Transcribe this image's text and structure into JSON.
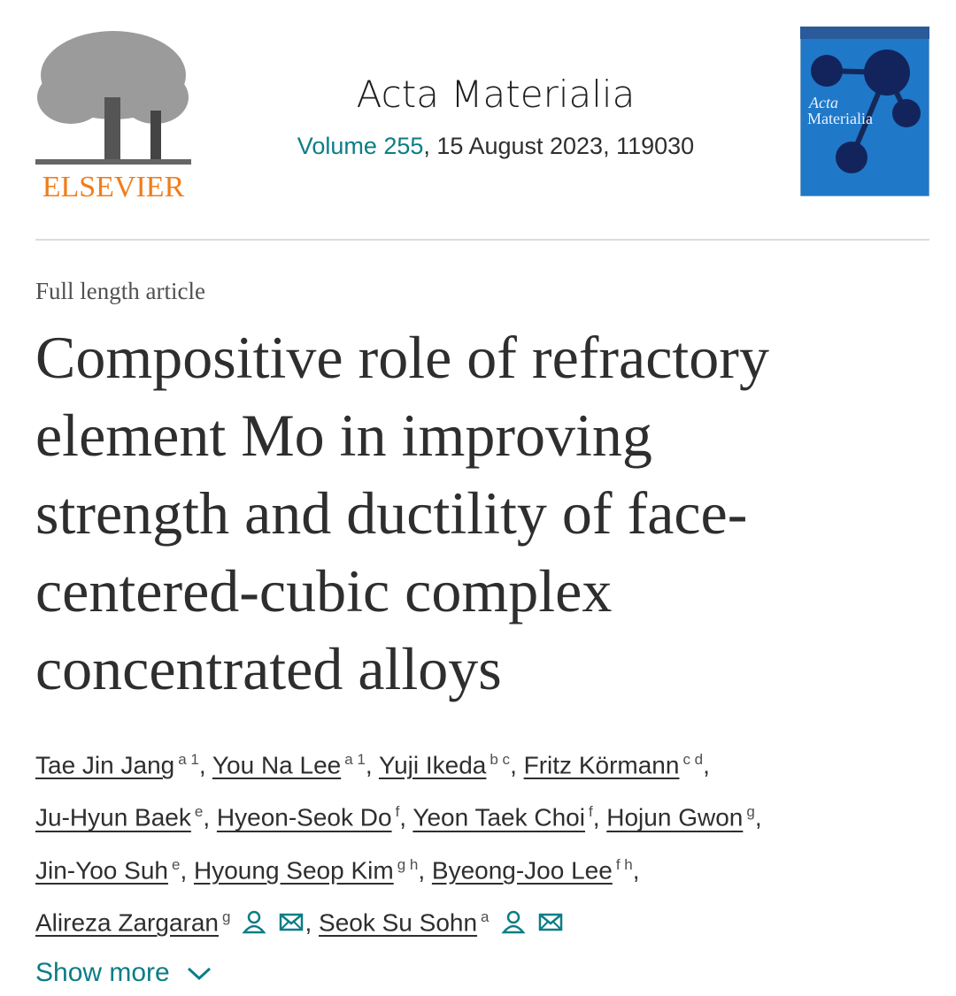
{
  "header": {
    "publisher": "ELSEVIER",
    "journal": "Acta Materialia",
    "volume_link": "Volume 255",
    "issue_info": ", 15 August 2023, 119030",
    "cover_title_1": "Acta",
    "cover_title_2": "Materialia"
  },
  "article": {
    "type": "Full length article",
    "title_lines": [
      "Compositive role of refractory",
      "element Mo in improving",
      "strength and ductility of face-",
      "centered-cubic complex",
      "concentrated alloys"
    ],
    "author_lines": [
      [
        {
          "name": "Tae Jin Jang",
          "sup": "a 1",
          "punct": ","
        },
        {
          "name": "You Na Lee",
          "sup": "a 1",
          "punct": ","
        },
        {
          "name": "Yuji Ikeda",
          "sup": "b c",
          "punct": ","
        },
        {
          "name": "Fritz Körmann",
          "sup": "c d",
          "punct": ","
        }
      ],
      [
        {
          "name": "Ju-Hyun Baek",
          "sup": "e",
          "punct": ","
        },
        {
          "name": "Hyeon-Seok Do",
          "sup": "f",
          "punct": ","
        },
        {
          "name": "Yeon Taek Choi",
          "sup": "f",
          "punct": ","
        },
        {
          "name": "Hojun Gwon",
          "sup": "g",
          "punct": ","
        }
      ],
      [
        {
          "name": "Jin-Yoo Suh",
          "sup": "e",
          "punct": ","
        },
        {
          "name": "Hyoung Seop Kim",
          "sup": "g h",
          "punct": ","
        },
        {
          "name": "Byeong-Joo Lee",
          "sup": "f h",
          "punct": ","
        }
      ],
      [
        {
          "name": "Alireza Zargaran",
          "sup": "g",
          "corresponding": true,
          "punct": ","
        },
        {
          "name": "Seok Su Sohn",
          "sup": "a",
          "corresponding": true
        }
      ]
    ],
    "show_more": "Show more"
  }
}
